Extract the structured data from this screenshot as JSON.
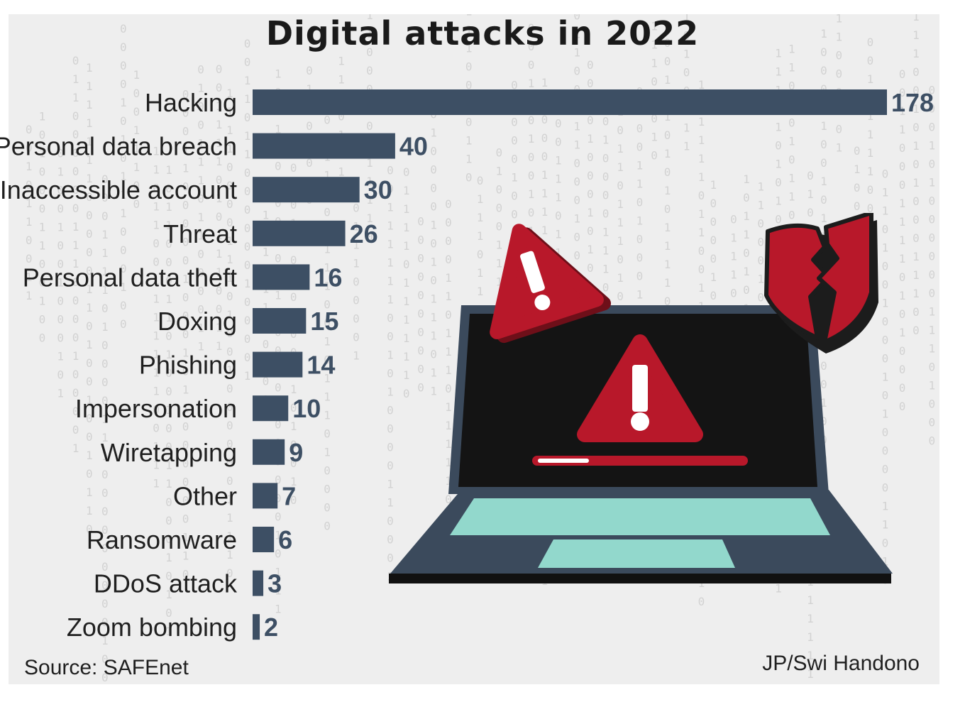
{
  "chart_data": {
    "type": "bar",
    "orientation": "horizontal",
    "title": "Digital attacks in 2022",
    "categories": [
      "Hacking",
      "Personal data breach",
      "Inaccessible account",
      "Threat",
      "Personal data theft",
      "Doxing",
      "Phishing",
      "Impersonation",
      "Wiretapping",
      "Other",
      "Ransomware",
      "DDoS attack",
      "Zoom bombing"
    ],
    "values": [
      178,
      40,
      30,
      26,
      16,
      15,
      14,
      10,
      9,
      7,
      6,
      3,
      2
    ],
    "xlim": [
      0,
      178
    ],
    "xlabel": "",
    "ylabel": "",
    "grid": false,
    "bar_color": "#3d4f64"
  },
  "footer": {
    "source": "Source: SAFEnet",
    "credit": "JP/Swi Handono"
  },
  "illustration": {
    "icons": [
      "warning-triangle-icon",
      "broken-shield-icon",
      "laptop-icon"
    ],
    "accent_color": "#b8182a"
  }
}
